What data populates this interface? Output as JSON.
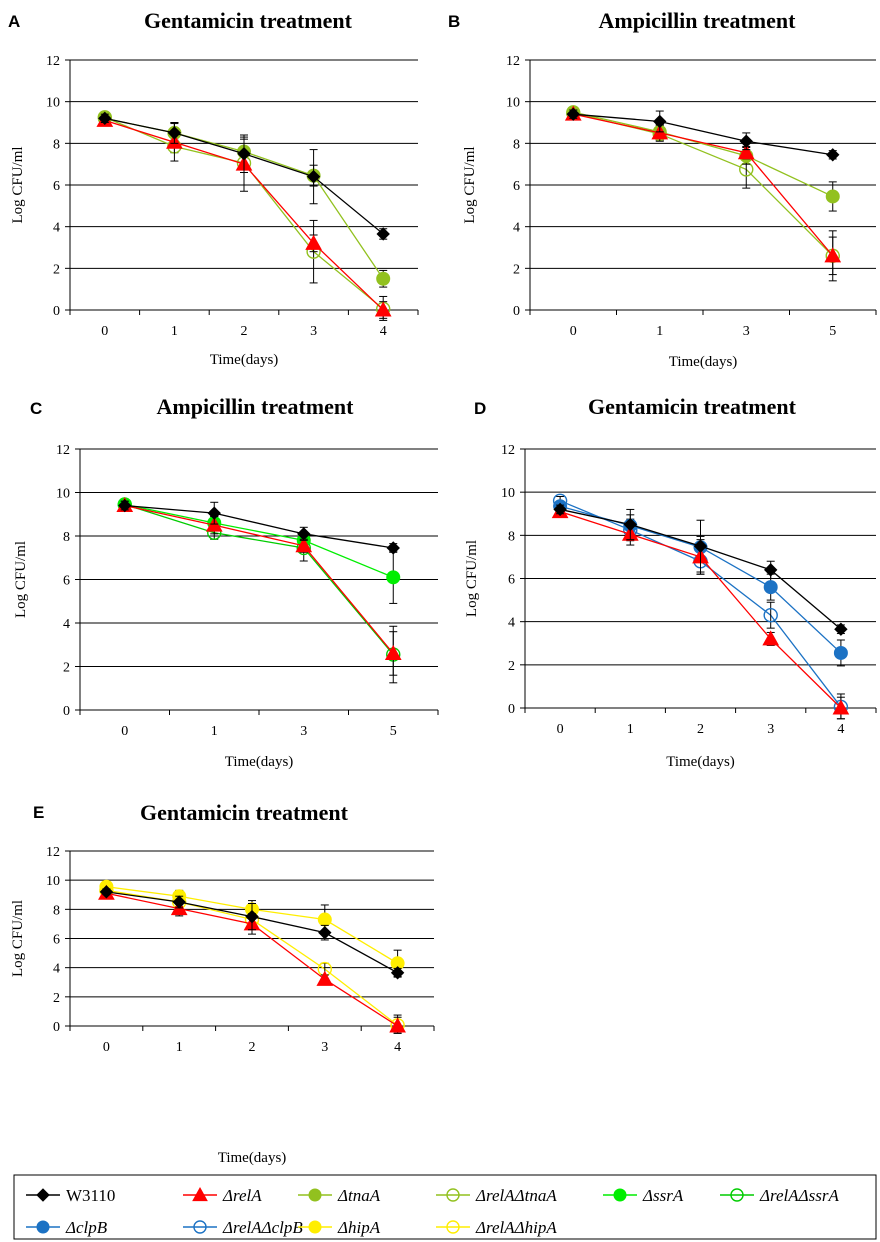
{
  "chart_data": [
    {
      "panel": "A",
      "type": "line",
      "title": "Gentamicin treatment",
      "xlabel": "Time(days)",
      "ylabel": "Log CFU/ml",
      "categories": [
        "0",
        "1",
        "2",
        "3",
        "4"
      ],
      "ylim": [
        0,
        12
      ],
      "yticks": [
        0,
        2,
        4,
        6,
        8,
        10,
        12
      ],
      "grid": true,
      "series": [
        {
          "key": "W3110",
          "values": [
            9.2,
            8.5,
            7.5,
            6.4,
            3.65
          ],
          "err": [
            0.2,
            0.5,
            0.9,
            1.3,
            0.25
          ]
        },
        {
          "key": "relA",
          "values": [
            9.1,
            8.05,
            7.0,
            3.2,
            0.0
          ],
          "err": [
            0.15,
            0.9,
            1.3,
            0.4,
            0.4
          ]
        },
        {
          "key": "tnaA",
          "values": [
            9.2,
            8.5,
            7.6,
            6.45,
            1.5
          ],
          "err": [
            0.2,
            0.5,
            0.6,
            0.5,
            0.4
          ]
        },
        {
          "key": "relAtnaA",
          "values": [
            9.25,
            7.85,
            7.05,
            2.8,
            0.05
          ],
          "err": [
            0.2,
            0.3,
            0.3,
            1.5,
            0.6
          ]
        }
      ]
    },
    {
      "panel": "B",
      "type": "line",
      "title": "Ampicillin treatment",
      "xlabel": "Time(days)",
      "ylabel": "Log CFU/ml",
      "categories": [
        "0",
        "1",
        "3",
        "5"
      ],
      "ylim": [
        0,
        12
      ],
      "yticks": [
        0,
        2,
        4,
        6,
        8,
        10,
        12
      ],
      "grid": true,
      "series": [
        {
          "key": "W3110",
          "values": [
            9.4,
            9.05,
            8.1,
            7.45
          ],
          "err": [
            0.2,
            0.5,
            0.4,
            0.2
          ]
        },
        {
          "key": "relA",
          "values": [
            9.4,
            8.5,
            7.55,
            2.6
          ],
          "err": [
            0.2,
            0.4,
            0.3,
            0.9
          ]
        },
        {
          "key": "tnaA",
          "values": [
            9.5,
            8.55,
            7.4,
            5.45
          ],
          "err": [
            0.2,
            0.3,
            0.4,
            0.7
          ]
        },
        {
          "key": "relAtnaA",
          "values": [
            9.45,
            8.45,
            6.75,
            2.6
          ],
          "err": [
            0.2,
            0.3,
            0.9,
            1.2
          ]
        }
      ]
    },
    {
      "panel": "C",
      "type": "line",
      "title": "Ampicillin treatment",
      "xlabel": "Time(days)",
      "ylabel": "Log CFU/ml",
      "categories": [
        "0",
        "1",
        "3",
        "5"
      ],
      "ylim": [
        0,
        12
      ],
      "yticks": [
        0,
        2,
        4,
        6,
        8,
        10,
        12
      ],
      "grid": true,
      "series": [
        {
          "key": "W3110",
          "values": [
            9.4,
            9.05,
            8.1,
            7.45
          ],
          "err": [
            0.2,
            0.5,
            0.3,
            0.2
          ]
        },
        {
          "key": "relA",
          "values": [
            9.4,
            8.5,
            7.55,
            2.6
          ],
          "err": [
            0.2,
            0.4,
            0.3,
            1.0
          ]
        },
        {
          "key": "ssrA",
          "values": [
            9.45,
            8.6,
            7.8,
            6.1
          ],
          "err": [
            0.2,
            0.3,
            0.3,
            1.2
          ]
        },
        {
          "key": "relAssrA",
          "values": [
            9.45,
            8.15,
            7.45,
            2.55
          ],
          "err": [
            0.2,
            0.3,
            0.6,
            1.3
          ]
        }
      ]
    },
    {
      "panel": "D",
      "type": "line",
      "title": "Gentamicin treatment",
      "xlabel": "Time(days)",
      "ylabel": "Log CFU/ml",
      "categories": [
        "0",
        "1",
        "2",
        "3",
        "4"
      ],
      "ylim": [
        0,
        12
      ],
      "yticks": [
        0,
        2,
        4,
        6,
        8,
        10,
        12
      ],
      "grid": true,
      "series": [
        {
          "key": "W3110",
          "values": [
            9.2,
            8.5,
            7.5,
            6.4,
            3.65
          ],
          "err": [
            0.2,
            0.7,
            1.2,
            0.4,
            0.2
          ]
        },
        {
          "key": "relA",
          "values": [
            9.1,
            8.05,
            7.0,
            3.2,
            0.0
          ],
          "err": [
            0.15,
            0.5,
            0.8,
            0.3,
            0.5
          ]
        },
        {
          "key": "clpB",
          "values": [
            9.35,
            8.45,
            7.45,
            5.6,
            2.55
          ],
          "err": [
            0.2,
            0.5,
            0.5,
            0.6,
            0.6
          ]
        },
        {
          "key": "relAclpB",
          "values": [
            9.6,
            8.25,
            6.8,
            4.3,
            0.05
          ],
          "err": [
            0.2,
            0.5,
            0.6,
            0.6,
            0.6
          ]
        }
      ]
    },
    {
      "panel": "E",
      "type": "line",
      "title": "Gentamicin treatment",
      "xlabel": "Time(days)",
      "ylabel": "Log CFU/ml",
      "categories": [
        "0",
        "1",
        "2",
        "3",
        "4"
      ],
      "ylim": [
        0,
        12
      ],
      "yticks": [
        0,
        2,
        4,
        6,
        8,
        10,
        12
      ],
      "grid": true,
      "series": [
        {
          "key": "W3110",
          "values": [
            9.2,
            8.5,
            7.5,
            6.4,
            3.65
          ],
          "err": [
            0.2,
            0.4,
            0.9,
            0.5,
            0.3
          ]
        },
        {
          "key": "relA",
          "values": [
            9.1,
            8.05,
            7.0,
            3.2,
            0.0
          ],
          "err": [
            0.15,
            0.5,
            0.7,
            0.3,
            0.6
          ]
        },
        {
          "key": "hipA",
          "values": [
            9.55,
            8.9,
            8.0,
            7.3,
            4.3
          ],
          "err": [
            0.2,
            0.4,
            0.6,
            1.0,
            0.9
          ]
        },
        {
          "key": "relAhipA",
          "values": [
            9.3,
            8.5,
            7.3,
            3.9,
            0.05
          ],
          "err": [
            0.2,
            0.3,
            0.5,
            0.4,
            0.7
          ]
        }
      ]
    }
  ],
  "legend": {
    "entries": [
      {
        "key": "W3110",
        "label": "W3110",
        "color": "#000000",
        "marker": "diamond",
        "filled": true,
        "italic": false
      },
      {
        "key": "relA",
        "label": "ΔrelA",
        "color": "#ff0000",
        "marker": "triangle",
        "filled": true,
        "italic": true
      },
      {
        "key": "tnaA",
        "label": "ΔtnaA",
        "color": "#92c11f",
        "marker": "circle",
        "filled": true,
        "italic": true
      },
      {
        "key": "relAtnaA",
        "label": "ΔrelAΔtnaA",
        "color": "#92c11f",
        "marker": "circle",
        "filled": false,
        "italic": true
      },
      {
        "key": "ssrA",
        "label": "ΔssrA",
        "color": "#00ee00",
        "marker": "circle",
        "filled": true,
        "italic": true
      },
      {
        "key": "relAssrA",
        "label": "ΔrelAΔssrA",
        "color": "#00cc00",
        "marker": "circle",
        "filled": false,
        "italic": true
      },
      {
        "key": "clpB",
        "label": "ΔclpB",
        "color": "#1c72c4",
        "marker": "circle",
        "filled": true,
        "italic": true
      },
      {
        "key": "relAclpB",
        "label": "ΔrelAΔclpB",
        "color": "#1c72c4",
        "marker": "circle",
        "filled": false,
        "italic": true
      },
      {
        "key": "hipA",
        "label": "ΔhipA",
        "color": "#ffee00",
        "marker": "circle",
        "filled": true,
        "italic": true
      },
      {
        "key": "relAhipA",
        "label": "ΔrelAΔhipA",
        "color": "#ffee00",
        "marker": "circle",
        "filled": false,
        "italic": true
      }
    ]
  }
}
